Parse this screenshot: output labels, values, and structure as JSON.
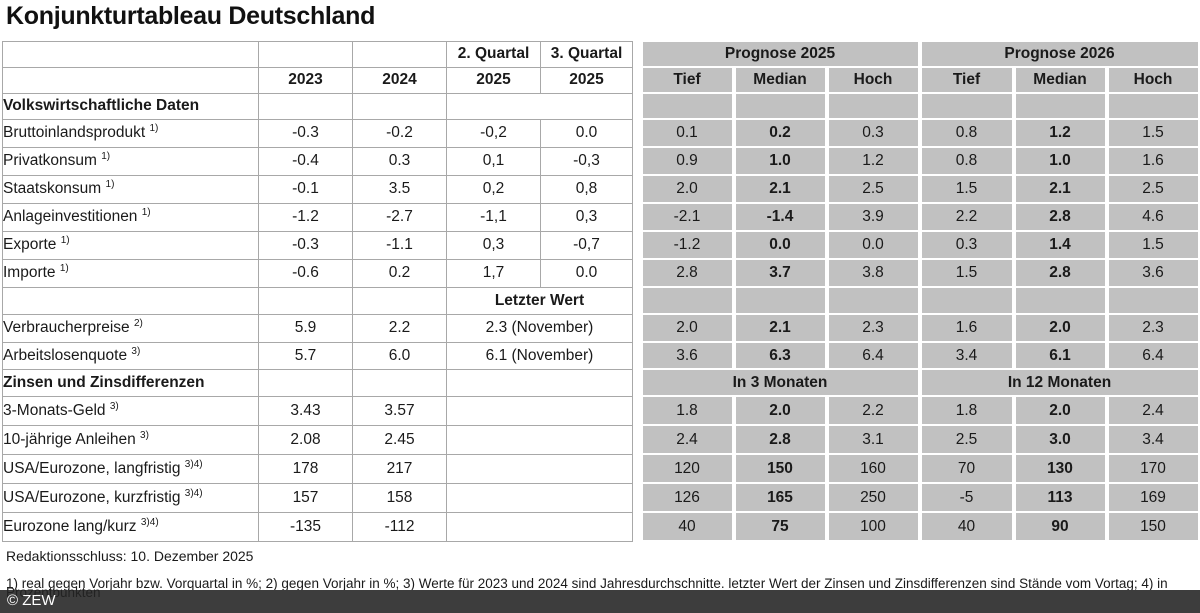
{
  "title": "Konjunkturtableau Deutschland",
  "table": {
    "quartal_headers": [
      "2. Quartal",
      "3. Quartal"
    ],
    "year_headers": [
      "2023",
      "2024"
    ],
    "quarter_year": "2025",
    "prognose_groups": [
      "Prognose 2025",
      "Prognose 2026"
    ],
    "sub_headers": [
      "Tief",
      "Median",
      "Hoch"
    ],
    "section_volkswirtschaft": {
      "title": "Volkswirtschaftliche Daten",
      "rows": [
        {
          "label": "Bruttoinlandsprodukt",
          "sup": "1)",
          "v2023": "-0.3",
          "v2024": "-0.2",
          "q2_2025": "-0,2",
          "q3_2025": "0.0",
          "prognose_2025": [
            "0.1",
            "0.2",
            "0.3"
          ],
          "prognose_2026": [
            "0.8",
            "1.2",
            "1.5"
          ]
        },
        {
          "label": "Privatkonsum",
          "sup": "1)",
          "v2023": "-0.4",
          "v2024": "0.3",
          "q2_2025": "0,1",
          "q3_2025": "-0,3",
          "prognose_2025": [
            "0.9",
            "1.0",
            "1.2"
          ],
          "prognose_2026": [
            "0.8",
            "1.0",
            "1.6"
          ]
        },
        {
          "label": "Staatskonsum",
          "sup": "1)",
          "v2023": "-0.1",
          "v2024": "3.5",
          "q2_2025": "0,2",
          "q3_2025": "0,8",
          "prognose_2025": [
            "2.0",
            "2.1",
            "2.5"
          ],
          "prognose_2026": [
            "1.5",
            "2.1",
            "2.5"
          ]
        },
        {
          "label": "Anlageinvestitionen",
          "sup": "1)",
          "v2023": "-1.2",
          "v2024": "-2.7",
          "q2_2025": "-1,1",
          "q3_2025": "0,3",
          "prognose_2025": [
            "-2.1",
            "-1.4",
            "3.9"
          ],
          "prognose_2026": [
            "2.2",
            "2.8",
            "4.6"
          ]
        },
        {
          "label": "Exporte",
          "sup": "1)",
          "v2023": "-0.3",
          "v2024": "-1.1",
          "q2_2025": "0,3",
          "q3_2025": "-0,7",
          "prognose_2025": [
            "-1.2",
            "0.0",
            "0.0"
          ],
          "prognose_2026": [
            "0.3",
            "1.4",
            "1.5"
          ]
        },
        {
          "label": "Importe",
          "sup": "1)",
          "v2023": "-0.6",
          "v2024": "0.2",
          "q2_2025": "1,7",
          "q3_2025": "0.0",
          "prognose_2025": [
            "2.8",
            "3.7",
            "3.8"
          ],
          "prognose_2026": [
            "1.5",
            "2.8",
            "3.6"
          ]
        }
      ]
    },
    "letzter_wert_header": "Letzter Wert",
    "letzter_wert_rows": [
      {
        "label": "Verbraucherpreise",
        "sup": "2)",
        "v2023": "5.9",
        "v2024": "2.2",
        "letzter_wert": "2.3 (November)",
        "prognose_2025": [
          "2.0",
          "2.1",
          "2.3"
        ],
        "prognose_2026": [
          "1.6",
          "2.0",
          "2.3"
        ]
      },
      {
        "label": "Arbeitslosenquote",
        "sup": "3)",
        "v2023": "5.7",
        "v2024": "6.0",
        "letzter_wert": "6.1 (November)",
        "prognose_2025": [
          "3.6",
          "6.3",
          "6.4"
        ],
        "prognose_2026": [
          "3.4",
          "6.1",
          "6.4"
        ]
      }
    ],
    "section_zinsen": {
      "title": "Zinsen und Zinsdifferenzen",
      "horizon_headers": [
        "In 3 Monaten",
        "In 12 Monaten"
      ],
      "rows": [
        {
          "label": "3-Monats-Geld",
          "sup": "3)",
          "v2023": "3.43",
          "v2024": "3.57",
          "in_3_monaten": [
            "1.8",
            "2.0",
            "2.2"
          ],
          "in_12_monaten": [
            "1.8",
            "2.0",
            "2.4"
          ]
        },
        {
          "label": "10-jährige Anleihen",
          "sup": "3)",
          "v2023": "2.08",
          "v2024": "2.45",
          "in_3_monaten": [
            "2.4",
            "2.8",
            "3.1"
          ],
          "in_12_monaten": [
            "2.5",
            "3.0",
            "3.4"
          ]
        },
        {
          "label": "USA/Eurozone, langfristig",
          "sup": "3)4)",
          "v2023": "178",
          "v2024": "217",
          "in_3_monaten": [
            "120",
            "150",
            "160"
          ],
          "in_12_monaten": [
            "70",
            "130",
            "170"
          ]
        },
        {
          "label": "USA/Eurozone, kurzfristig",
          "sup": "3)4)",
          "v2023": "157",
          "v2024": "158",
          "in_3_monaten": [
            "126",
            "165",
            "250"
          ],
          "in_12_monaten": [
            "-5",
            "113",
            "169"
          ]
        },
        {
          "label": "Eurozone lang/kurz",
          "sup": "3)4)",
          "v2023": "-135",
          "v2024": "-112",
          "in_3_monaten": [
            "40",
            "75",
            "100"
          ],
          "in_12_monaten": [
            "40",
            "90",
            "150"
          ]
        }
      ]
    }
  },
  "footer": {
    "deadline": "Redaktionsschluss: 10. Dezember 2025",
    "footnote_line1": "1) real gegen Vorjahr bzw. Vorquartal in %; 2) gegen Vorjahr in %; 3) Werte für 2023 und 2024 sind Jahresdurchschnitte. letzter Wert der Zinsen und Zinsdifferenzen sind Stände vom Vortag; 4) in",
    "footnote_line2": "Prozentpunkten",
    "copyright": "© ZEW"
  },
  "colors": {
    "cell_gray": "#c1c1c1",
    "bar_dark": "#3d3d3d",
    "border_gray": "#a8a8a8"
  }
}
